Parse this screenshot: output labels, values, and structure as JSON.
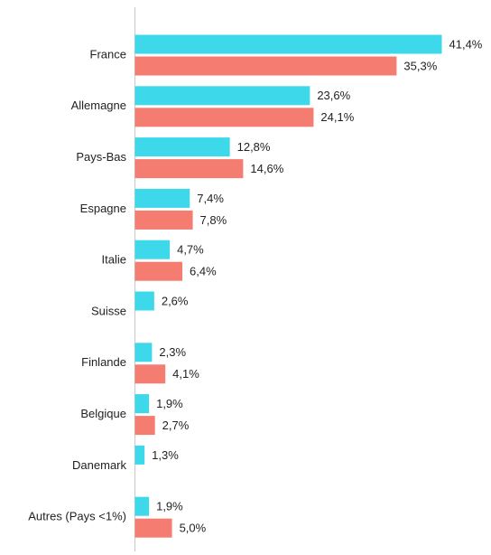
{
  "chart_data": {
    "type": "hbar",
    "categories": [
      "France",
      "Allemagne",
      "Pays-Bas",
      "Espagne",
      "Italie",
      "Suisse",
      "Finlande",
      "Belgique",
      "Danemark",
      "Autres (Pays <1%)"
    ],
    "series": [
      {
        "color": "#3dd8ea",
        "values": [
          41.4,
          23.6,
          12.8,
          7.4,
          4.7,
          2.6,
          2.3,
          1.9,
          1.3,
          1.9
        ],
        "value_labels": [
          "41,4%",
          "23,6%",
          "12,8%",
          "7,4%",
          "4,7%",
          "2,6%",
          "2,3%",
          "1,9%",
          "1,3%",
          "1,9%"
        ]
      },
      {
        "color": "#f47c70",
        "values": [
          35.3,
          24.1,
          14.6,
          7.8,
          6.4,
          null,
          4.1,
          2.7,
          null,
          5.0
        ],
        "value_labels": [
          "35,3%",
          "24,1%",
          "14,6%",
          "7,8%",
          "6,4%",
          null,
          "4,1%",
          "2,7%",
          null,
          "5,0%"
        ]
      }
    ]
  }
}
